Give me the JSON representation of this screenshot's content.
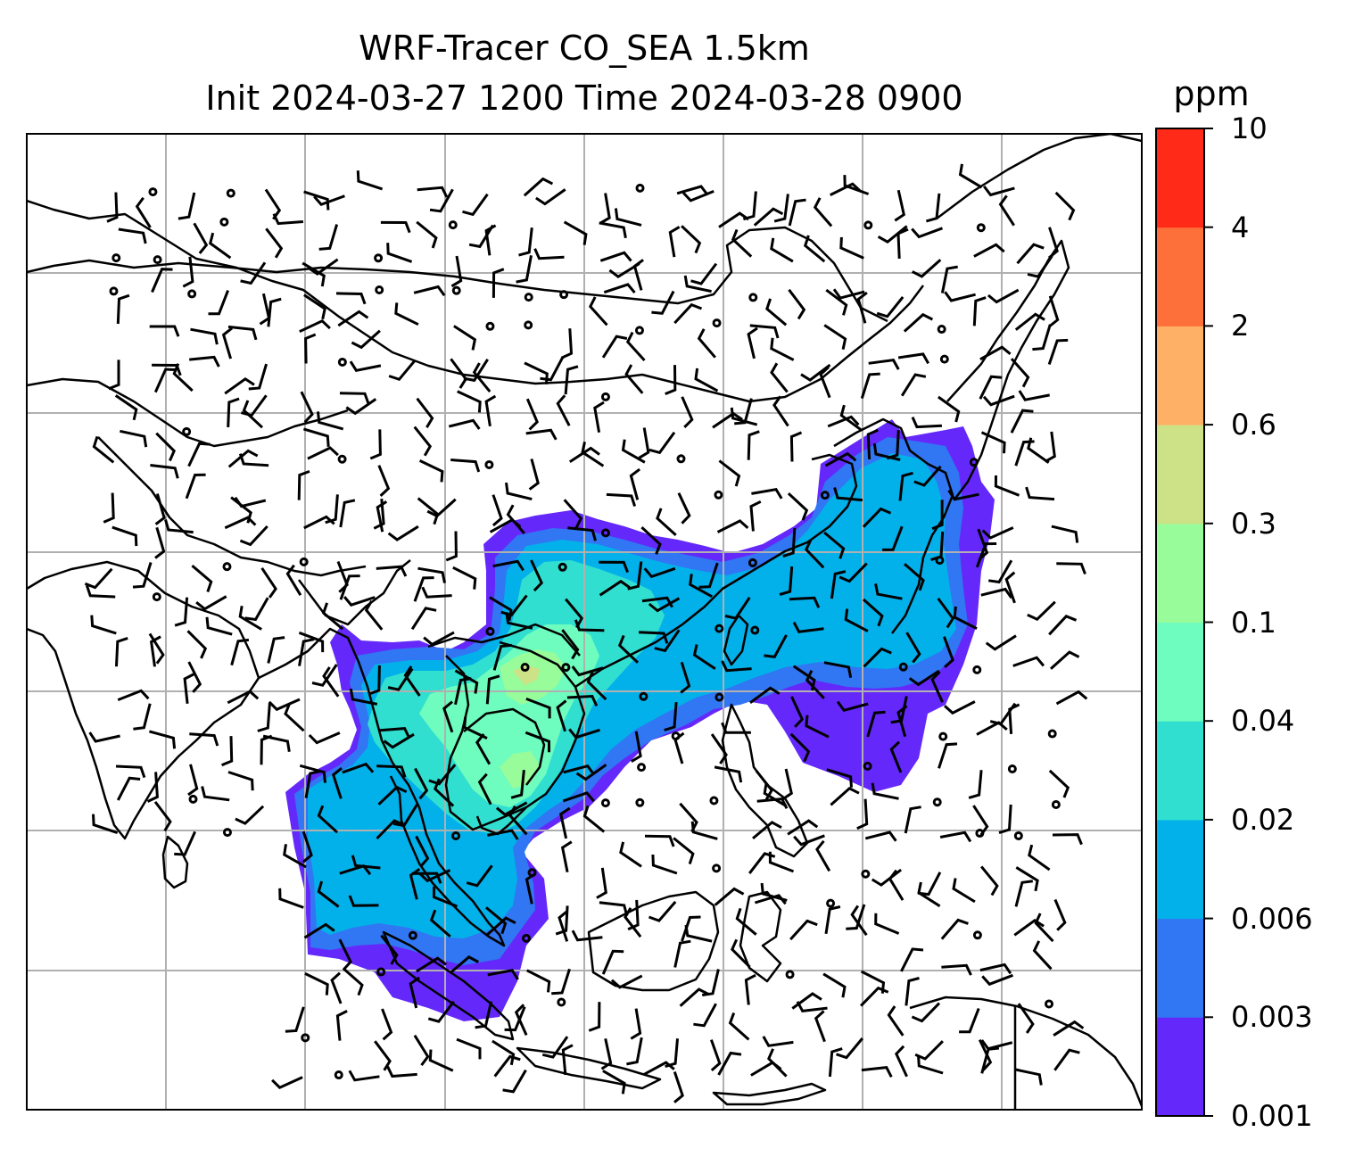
{
  "title": {
    "line1": "WRF-Tracer CO_SEA 1.5km",
    "line2": "Init 2024-03-27 1200 Time 2024-03-28 0900"
  },
  "colorbar": {
    "unit": "ppm",
    "levels": [
      "0.001",
      "0.003",
      "0.006",
      "0.02",
      "0.04",
      "0.1",
      "0.3",
      "0.6",
      "2",
      "4",
      "10"
    ],
    "colors": [
      "#6429fa",
      "#3176f3",
      "#03b1ea",
      "#31dfd1",
      "#6efdbe",
      "#98fc9a",
      "#cde286",
      "#fdb066",
      "#fe703a",
      "#ff2b18"
    ]
  },
  "map": {
    "gridlines": true,
    "layers": [
      "coastlines",
      "country-borders",
      "wind-barbs",
      "tracer-shading"
    ]
  }
}
